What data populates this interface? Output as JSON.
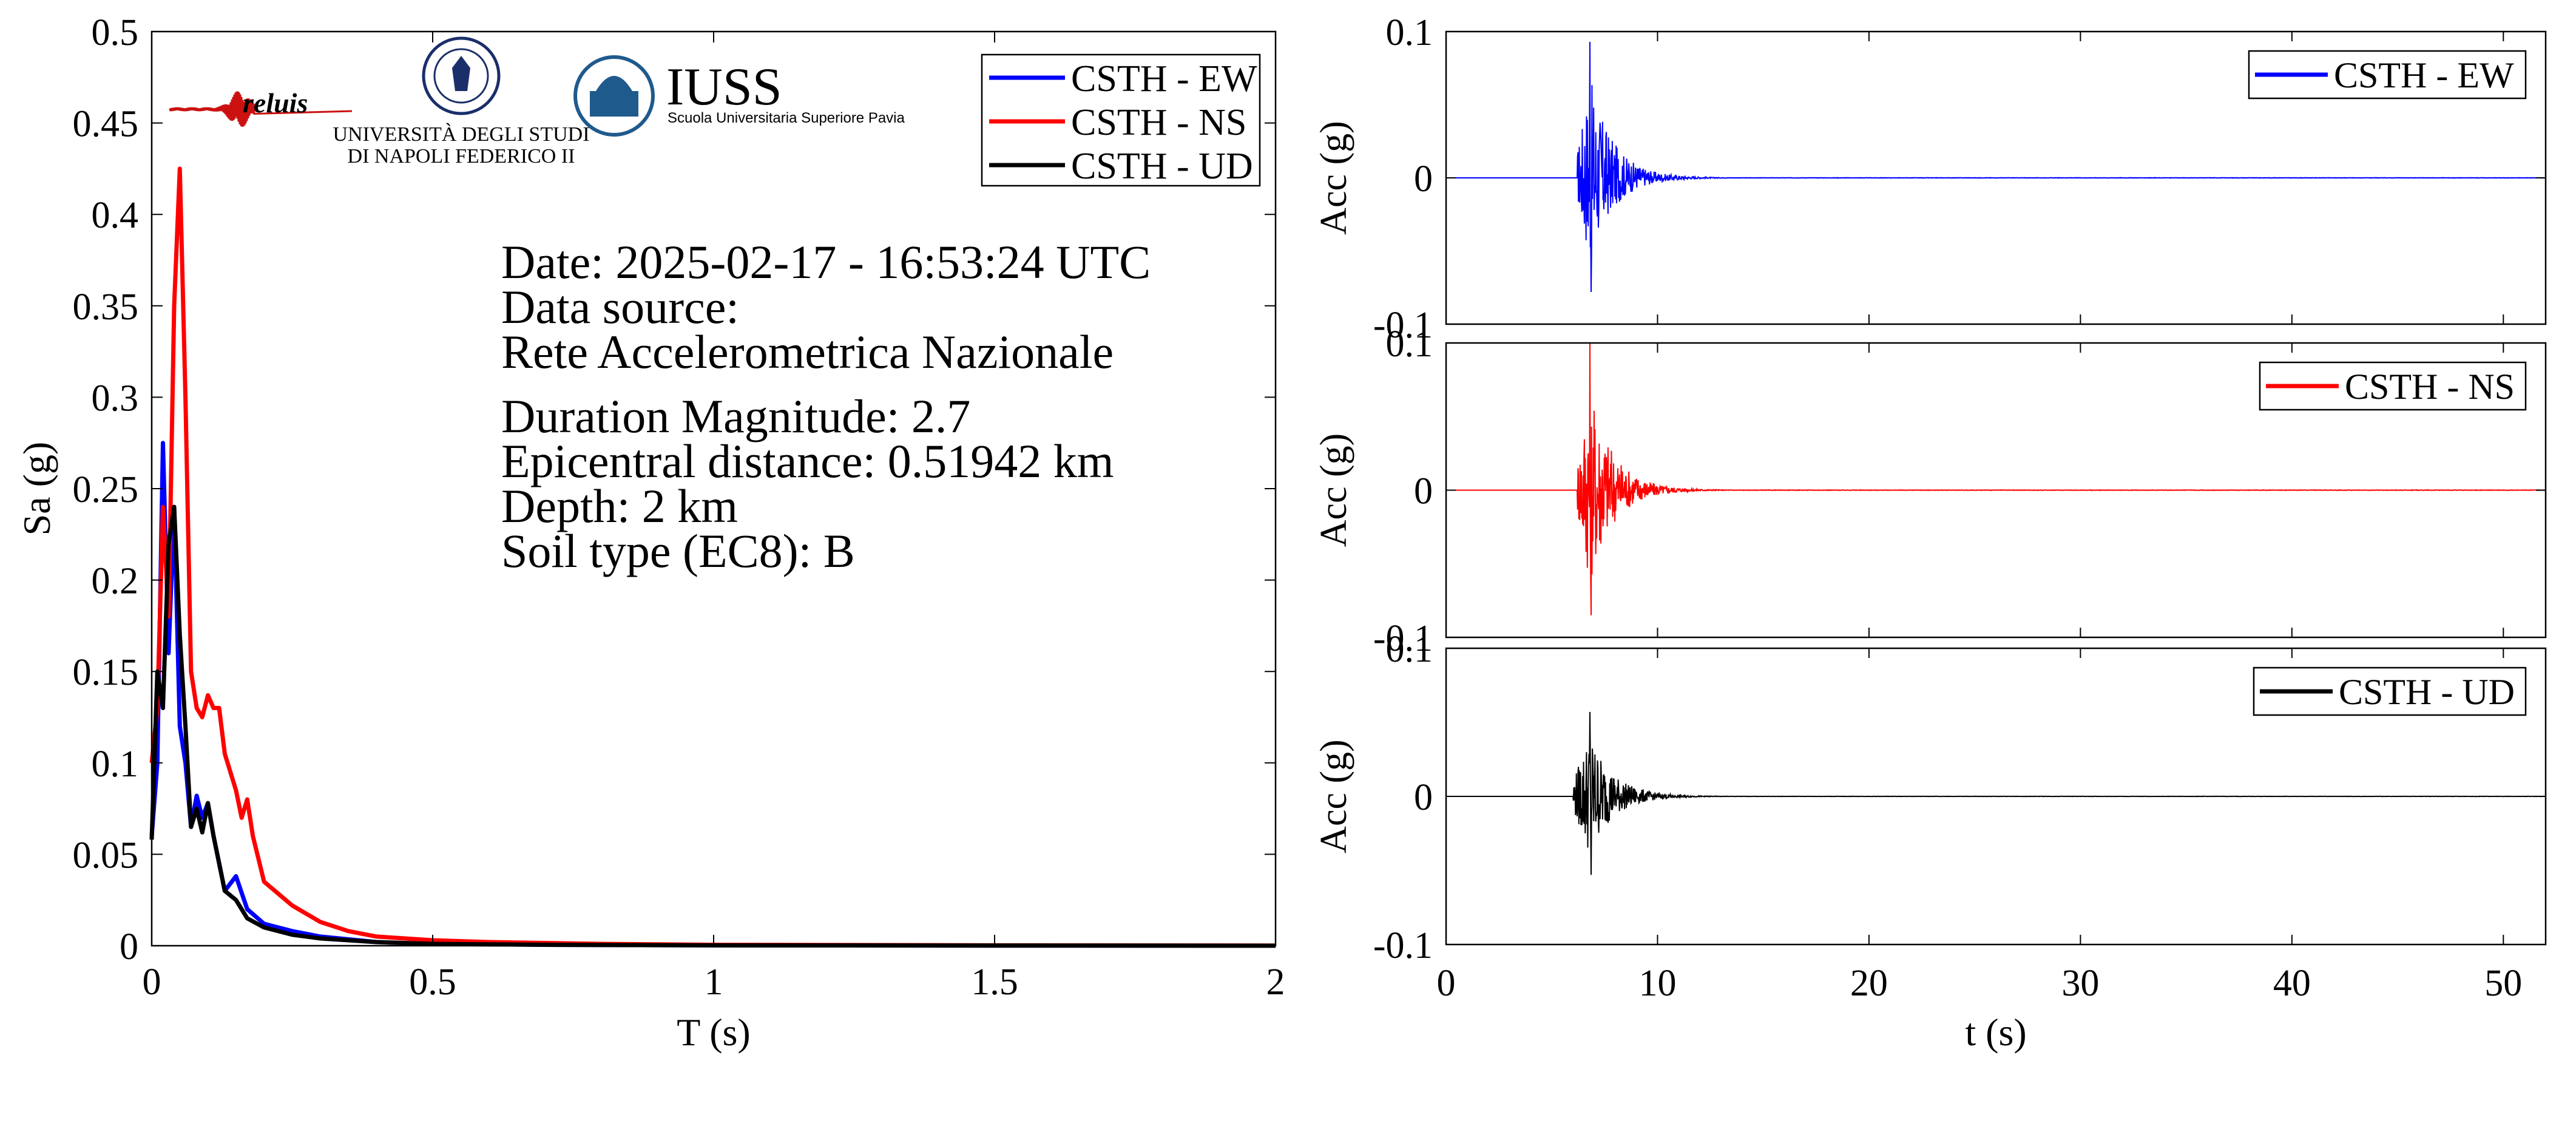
{
  "colors": {
    "ew": "#0000ff",
    "ns": "#ff0000",
    "ud": "#000000",
    "iuss_blue": "#1f5a8c",
    "reluis_red": "#cc1111",
    "reluis_blue": "#1a2f8a"
  },
  "logos": {
    "reluis": "reluis",
    "unina_line1": "UNIVERSITÀ DEGLI STUDI",
    "unina_line2": "DI NAPOLI FEDERICO II",
    "iuss_name": "IUSS",
    "iuss_sub": "Scuola Universitaria Superiore Pavia"
  },
  "info": {
    "date": "Date: 2025-02-17 - 16:53:24 UTC",
    "source_label": "Data source:",
    "source": "Rete Accelerometrica Nazionale",
    "magnitude": "Duration Magnitude: 2.7",
    "distance": "Epicentral distance: 0.51942 km",
    "depth": "Depth: 2 km",
    "soil": "Soil type (EC8): B"
  },
  "chart_data": [
    {
      "type": "line",
      "xlabel": "T (s)",
      "ylabel": "Sa (g)",
      "xlim": [
        0,
        2
      ],
      "ylim": [
        0,
        0.5
      ],
      "xticks": [
        "0",
        "0.5",
        "1",
        "1.5",
        "2"
      ],
      "yticks": [
        "0",
        "0.05",
        "0.1",
        "0.15",
        "0.2",
        "0.25",
        "0.3",
        "0.35",
        "0.4",
        "0.45",
        "0.5"
      ],
      "legend_position": "top-right",
      "series": [
        {
          "name": "CSTH - EW",
          "key": "ew",
          "x": [
            0,
            0.01,
            0.02,
            0.03,
            0.04,
            0.05,
            0.06,
            0.07,
            0.08,
            0.09,
            0.1,
            0.11,
            0.13,
            0.15,
            0.17,
            0.2,
            0.25,
            0.3,
            0.4,
            0.5,
            0.7,
            1.0,
            1.5,
            2.0
          ],
          "y": [
            0.06,
            0.1,
            0.275,
            0.16,
            0.24,
            0.12,
            0.1,
            0.065,
            0.082,
            0.07,
            0.078,
            0.06,
            0.03,
            0.038,
            0.02,
            0.012,
            0.008,
            0.005,
            0.002,
            0.001,
            0.0005,
            0.0002,
            0.0001,
            0.0
          ]
        },
        {
          "name": "CSTH - NS",
          "key": "ns",
          "x": [
            0,
            0.01,
            0.02,
            0.03,
            0.04,
            0.05,
            0.06,
            0.07,
            0.08,
            0.09,
            0.1,
            0.11,
            0.12,
            0.13,
            0.15,
            0.16,
            0.17,
            0.18,
            0.2,
            0.25,
            0.3,
            0.35,
            0.4,
            0.5,
            0.6,
            0.8,
            1.0,
            1.5,
            2.0
          ],
          "y": [
            0.1,
            0.13,
            0.24,
            0.18,
            0.35,
            0.425,
            0.3,
            0.15,
            0.13,
            0.125,
            0.137,
            0.13,
            0.13,
            0.105,
            0.085,
            0.07,
            0.08,
            0.06,
            0.035,
            0.022,
            0.013,
            0.008,
            0.005,
            0.003,
            0.002,
            0.001,
            0.0005,
            0.0002,
            0.0001
          ]
        },
        {
          "name": "CSTH - UD",
          "key": "ud",
          "x": [
            0,
            0.01,
            0.02,
            0.03,
            0.04,
            0.05,
            0.06,
            0.07,
            0.08,
            0.09,
            0.1,
            0.11,
            0.13,
            0.15,
            0.17,
            0.2,
            0.25,
            0.3,
            0.4,
            0.5,
            0.7,
            1.0,
            2.0
          ],
          "y": [
            0.058,
            0.15,
            0.13,
            0.22,
            0.24,
            0.17,
            0.12,
            0.065,
            0.075,
            0.062,
            0.078,
            0.06,
            0.03,
            0.025,
            0.015,
            0.01,
            0.006,
            0.004,
            0.002,
            0.001,
            0.0005,
            0.0002,
            0.0
          ]
        }
      ]
    },
    {
      "type": "line",
      "ylabel": "Acc (g)",
      "xlim": [
        0,
        52
      ],
      "ylim": [
        -0.1,
        0.1
      ],
      "yticks": [
        "-0.1",
        "0",
        "0.1"
      ],
      "series": [
        {
          "name": "CSTH - EW",
          "key": "ew",
          "onset": 6.2,
          "peak_time": 6.8,
          "peak_pos": 0.093,
          "peak_neg": -0.078
        }
      ]
    },
    {
      "type": "line",
      "ylabel": "Acc (g)",
      "xlim": [
        0,
        52
      ],
      "ylim": [
        -0.1,
        0.1
      ],
      "yticks": [
        "-0.1",
        "0",
        "0.1"
      ],
      "series": [
        {
          "name": "CSTH - NS",
          "key": "ns",
          "onset": 6.2,
          "peak_time": 6.8,
          "peak_pos": 0.1,
          "peak_neg": -0.085
        }
      ]
    },
    {
      "type": "line",
      "xlabel": "t (s)",
      "ylabel": "Acc (g)",
      "xlim": [
        0,
        52
      ],
      "ylim": [
        -0.1,
        0.1
      ],
      "xticks": [
        "0",
        "10",
        "20",
        "30",
        "40",
        "50"
      ],
      "yticks": [
        "-0.1",
        "0",
        "0.1"
      ],
      "series": [
        {
          "name": "CSTH - UD",
          "key": "ud",
          "onset": 6.0,
          "peak_time": 6.8,
          "peak_pos": 0.057,
          "peak_neg": -0.053
        }
      ]
    }
  ]
}
